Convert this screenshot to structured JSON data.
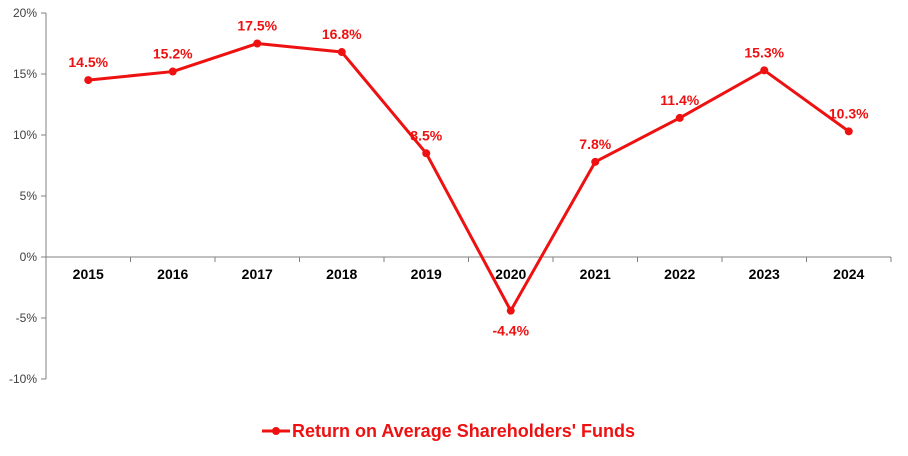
{
  "chart_data": {
    "type": "line",
    "title": "",
    "xlabel": "",
    "ylabel": "",
    "categories": [
      "2015",
      "2016",
      "2017",
      "2018",
      "2019",
      "2020",
      "2021",
      "2022",
      "2023",
      "2024"
    ],
    "series": [
      {
        "name": "Return on Average Shareholders' Funds",
        "values": [
          14.5,
          15.2,
          17.5,
          16.8,
          8.5,
          -4.4,
          7.8,
          11.4,
          15.3,
          10.3
        ],
        "labels": [
          "14.5%",
          "15.2%",
          "17.5%",
          "16.8%",
          "8.5%",
          "-4.4%",
          "7.8%",
          "11.4%",
          "15.3%",
          "10.3%"
        ],
        "color": "#EE1111"
      }
    ],
    "ylim": [
      -10,
      20
    ],
    "yticks": [
      20,
      15,
      10,
      5,
      0,
      -5,
      -10
    ],
    "ytick_labels": [
      "20%",
      "15%",
      "10%",
      "5%",
      "0%",
      "-5%",
      "-10%"
    ],
    "grid": false,
    "legend_position": "bottom-center"
  },
  "legend": {
    "label": "Return on Average Shareholders' Funds"
  },
  "colors": {
    "series": "#EE1111",
    "axis": "#808080",
    "tick_text": "#404040",
    "category_text": "#000000"
  }
}
